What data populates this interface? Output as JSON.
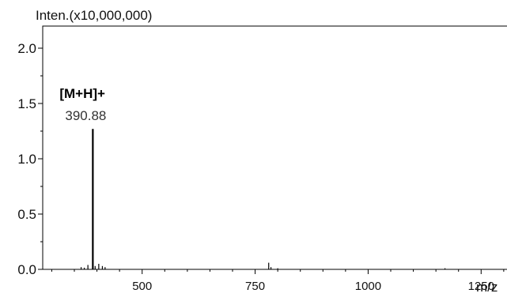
{
  "chart_data": {
    "type": "bar",
    "ylabel": "Inten.(x10,000,000)",
    "xlabel": "m/z",
    "xlim": [
      300,
      1350
    ],
    "ylim": [
      0,
      2.2
    ],
    "y_ticks": [
      {
        "value": 0.0,
        "label": "0.0"
      },
      {
        "value": 0.5,
        "label": "0.5"
      },
      {
        "value": 1.0,
        "label": "1.0"
      },
      {
        "value": 1.5,
        "label": "1.5"
      },
      {
        "value": 2.0,
        "label": "2.0"
      }
    ],
    "x_ticks": [
      {
        "value": 500,
        "label": "500"
      },
      {
        "value": 750,
        "label": "750"
      },
      {
        "value": 1000,
        "label": "1000"
      },
      {
        "value": 1250,
        "label": "1250"
      }
    ],
    "peaks": [
      {
        "x": 365,
        "y": 0.02
      },
      {
        "x": 372,
        "y": 0.015
      },
      {
        "x": 380,
        "y": 0.04
      },
      {
        "x": 390.88,
        "y": 1.27
      },
      {
        "x": 396,
        "y": 0.03
      },
      {
        "x": 404,
        "y": 0.05
      },
      {
        "x": 412,
        "y": 0.03
      },
      {
        "x": 418,
        "y": 0.02
      },
      {
        "x": 780,
        "y": 0.06
      },
      {
        "x": 785,
        "y": 0.02
      },
      {
        "x": 800,
        "y": 0.01
      },
      {
        "x": 1170,
        "y": 0.01
      }
    ],
    "annotations": [
      {
        "x": 390.88,
        "ion": "[M+H]+",
        "mass": "390.88"
      }
    ]
  }
}
